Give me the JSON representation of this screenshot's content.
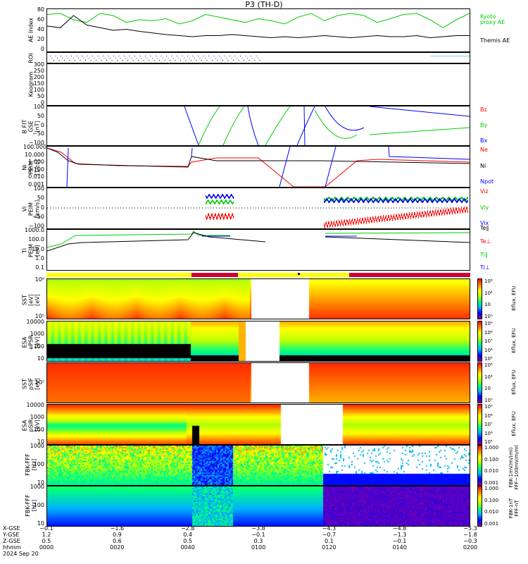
{
  "title": "P3 (TH-D)",
  "colors": {
    "green": "#00cc00",
    "black": "#000000",
    "red": "#ff0000",
    "blue": "#0000ff",
    "yellow": "#ffff00",
    "crimson": "#cc0033"
  },
  "panels": {
    "ae": {
      "ylabel": "AE Index",
      "ticks": [
        "80",
        "60",
        "40",
        "20",
        "0"
      ],
      "legend": [
        {
          "text": "Kyoto\nproxy AE",
          "color": "#00cc00"
        },
        {
          "text": "Themis AE",
          "color": "#000000"
        }
      ]
    },
    "roi": {
      "ylabel": "ROI",
      "ticks": [
        "",
        ""
      ]
    },
    "keogram": {
      "ylabel": "Keogram",
      "ticks": [
        "300",
        "250",
        "200",
        "150",
        "100",
        "50",
        "0"
      ]
    },
    "bfit": {
      "ylabel": "B FIT\nGSE\n[nT]",
      "ticks": [
        "100",
        "50",
        "0",
        "−50",
        "−100"
      ],
      "legend": [
        {
          "text": "Bz",
          "color": "#ff0000"
        },
        {
          "text": "By",
          "color": "#00cc00"
        },
        {
          "text": "Bx",
          "color": "#0000ff"
        }
      ]
    },
    "density": {
      "ylabel": "Ni\nPEIM\n[1/cc]",
      "ticks": [
        "100.000",
        "10.000",
        "1.000",
        "0.100",
        "0.010",
        "0.001"
      ],
      "legend": [
        {
          "text": "Ne",
          "color": "#ff0000"
        },
        {
          "text": "Ni",
          "color": "#000000"
        },
        {
          "text": "Npot",
          "color": "#0000ff"
        }
      ]
    },
    "velocity": {
      "ylabel": "Vi\nPEIM\n[km/s]",
      "ticks": [
        "100",
        "50",
        "0",
        "−50",
        "−100"
      ],
      "legend": [
        {
          "text": "Viz",
          "color": "#ff0000"
        },
        {
          "text": "Viy",
          "color": "#00cc00"
        },
        {
          "text": "Vix",
          "color": "#0000ff"
        }
      ]
    },
    "temp": {
      "ylabel": "Ti\nPEIM\n[eV]",
      "ticks": [
        "1000.0",
        "100.0",
        "10.0",
        "1.0",
        "0.1"
      ],
      "legend": [
        {
          "text": "Te∥",
          "color": "#000000"
        },
        {
          "text": "Te⊥",
          "color": "#ff0000"
        },
        {
          "text": "Ti∥",
          "color": "#00cc00"
        },
        {
          "text": "Ti⊥",
          "color": "#0000ff"
        }
      ]
    },
    "sst_e": {
      "ylabel": "SST\n[eV]\n[eV]",
      "ticks": [
        "10⁶",
        "10⁵"
      ],
      "cb_ticks": [
        "10⁸",
        "10⁴",
        "10⁲",
        "10⁰"
      ],
      "cb_label": "Eflux, EFU"
    },
    "esa_e": {
      "ylabel": "ESA\nePSR\n[eV]",
      "ticks": [
        "10000",
        "1000",
        "100",
        "10"
      ],
      "cb_ticks": [
        "10⁹",
        "10⁸",
        "10⁷",
        "10⁶",
        "10⁵"
      ],
      "cb_label": "Eflux, EFU"
    },
    "sst_i": {
      "ylabel": "SST\npSIF\n[eV]",
      "ticks": [
        "10⁵"
      ],
      "cb_ticks": [
        "10⁶",
        "10⁴",
        "10⁲",
        "10⁰"
      ],
      "cb_label": "Eflux, EFU"
    },
    "esa_i": {
      "ylabel": "ESA\npSIR\n[eV]",
      "ticks": [
        "10000",
        "1000",
        "100",
        "10"
      ],
      "cb_ticks": [
        "10⁹",
        "10⁸",
        "10⁷",
        "10⁶",
        "10⁵"
      ],
      "cb_label": "Eflux, EFU"
    },
    "fbk_e": {
      "ylabel": "FBK-FFF\n[Hz]",
      "ticks": [
        "1000",
        "100",
        "10"
      ],
      "cb_ticks": [
        "1.000",
        "0.100",
        "0.010",
        "0.001"
      ],
      "cb_label": "FBK-1mV/m/(ml)\nFFF~100mV/m/ml"
    },
    "fbk_b": {
      "ylabel": "FBK-FFF\n[Hz]",
      "ticks": [
        "1000",
        "100",
        "10"
      ],
      "cb_ticks": [
        "1.000",
        "0.100",
        "0.010",
        "0.001"
      ],
      "cb_label": "FBK-1nT\nFFF-nT"
    }
  },
  "xaxis": {
    "row_labels": [
      "X-GSE",
      "Y-GSE",
      "Z-GSE",
      "hhmm",
      "2024 Sep 20"
    ],
    "columns": [
      {
        "x": "−0.1",
        "y": "1.2",
        "z": "0.5",
        "t": "0000"
      },
      {
        "x": "−1.6",
        "y": "0.9",
        "z": "0.6",
        "t": "0020"
      },
      {
        "x": "−2.8",
        "y": "0.4",
        "z": "0.5",
        "t": "0040"
      },
      {
        "x": "−3.8",
        "y": "−0.1",
        "z": "0.3",
        "t": "0100"
      },
      {
        "x": "−4.3",
        "y": "−0.7",
        "z": "0.1",
        "t": "0120"
      },
      {
        "x": "−4.8",
        "y": "−1.3",
        "z": "−0.1",
        "t": "0140"
      },
      {
        "x": "−5.3",
        "y": "−1.8",
        "z": "−0.3",
        "t": "0200"
      }
    ]
  },
  "chart_data": {
    "type": "line",
    "title": "P3 (TH-D)",
    "x_ticks": [
      "0000",
      "0020",
      "0040",
      "0100",
      "0120",
      "0140",
      "0200"
    ],
    "series": [
      {
        "name": "Kyoto proxy AE",
        "values": [
          70,
          72,
          60,
          55,
          72,
          68,
          55,
          60,
          58,
          62,
          52,
          58,
          70,
          65,
          60,
          55,
          62,
          58,
          52,
          65,
          72,
          58,
          68,
          72,
          68,
          55,
          62,
          70,
          72,
          60,
          45,
          60,
          72
        ]
      },
      {
        "name": "Themis AE",
        "values": [
          48,
          45,
          68,
          50,
          45,
          40,
          42,
          38,
          35,
          32,
          30,
          28,
          30,
          30,
          32,
          30,
          28,
          26,
          28,
          26,
          28,
          30,
          28,
          26,
          28,
          30,
          28,
          28,
          30,
          26,
          28,
          30,
          30
        ]
      }
    ],
    "ylim": [
      0,
      80
    ]
  }
}
